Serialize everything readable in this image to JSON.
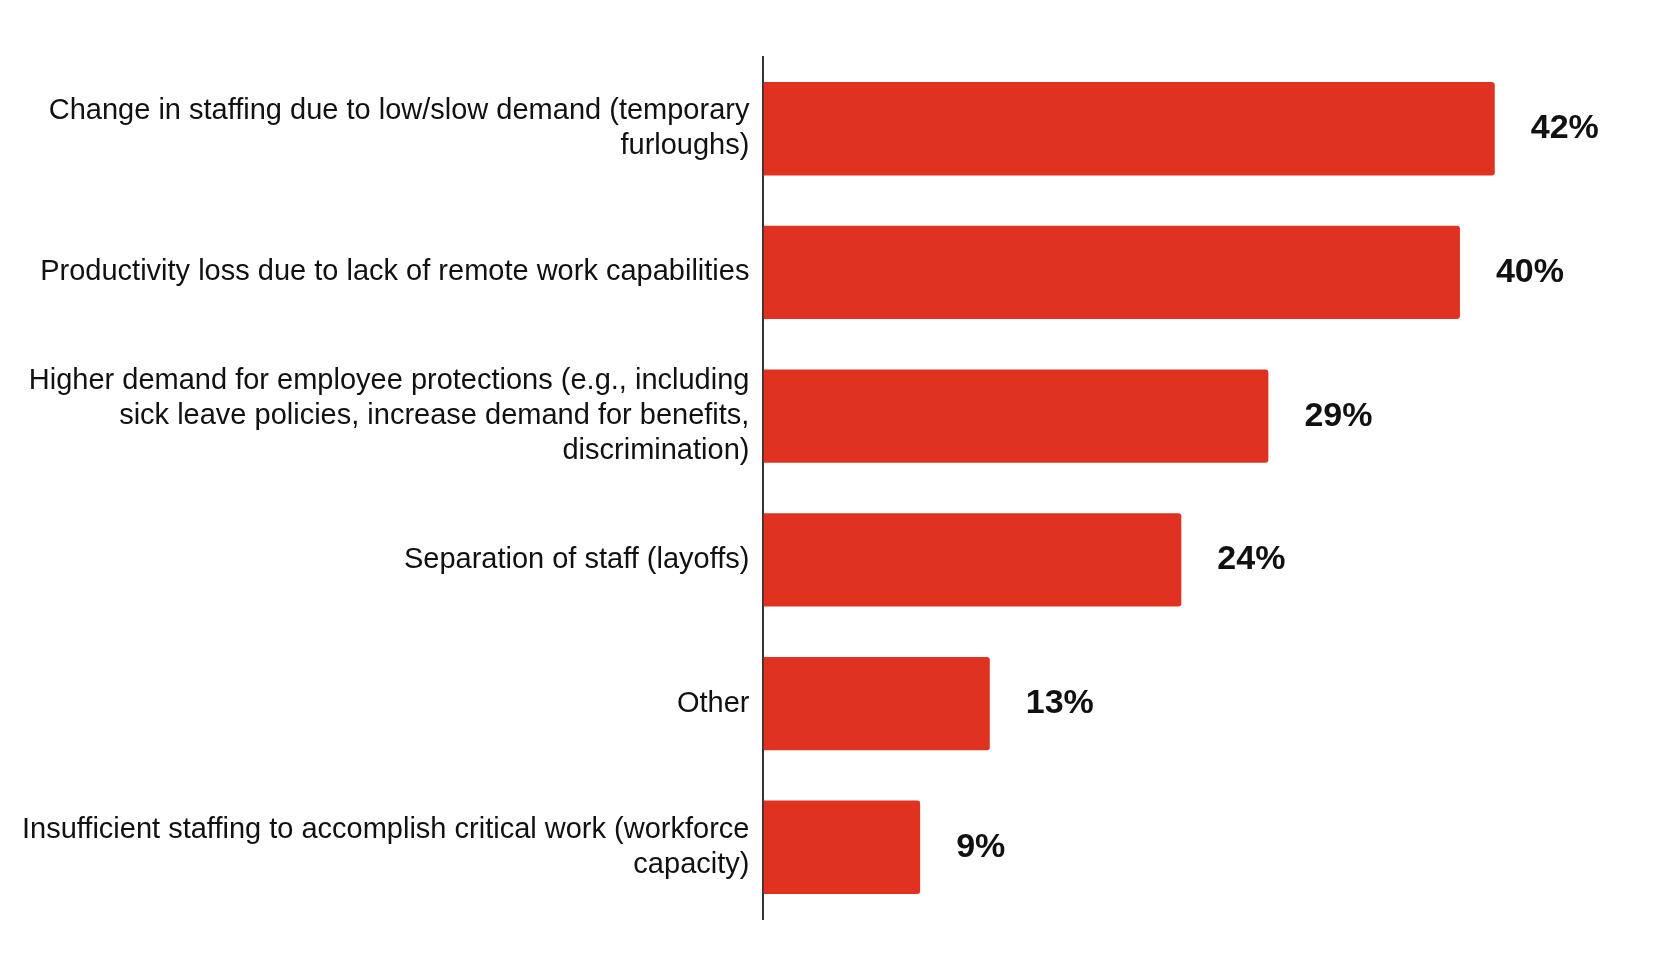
{
  "chart_data": {
    "type": "bar",
    "orientation": "horizontal",
    "categories": [
      "Change in staffing due to low/slow demand (temporary furloughs)",
      "Productivity loss due to lack of remote work capabilities",
      "Higher demand for employee protections (e.g., including sick leave policies, increase demand for benefits, discrimination)",
      "Separation of staff (layoffs)",
      "Other",
      "Insufficient staffing to accomplish critical work (workforce capacity)"
    ],
    "values": [
      42,
      40,
      29,
      24,
      13,
      9
    ],
    "value_labels": [
      "42%",
      "40%",
      "29%",
      "24%",
      "13%",
      "9%"
    ],
    "color": "#e03220",
    "grid": false,
    "legend": false
  }
}
